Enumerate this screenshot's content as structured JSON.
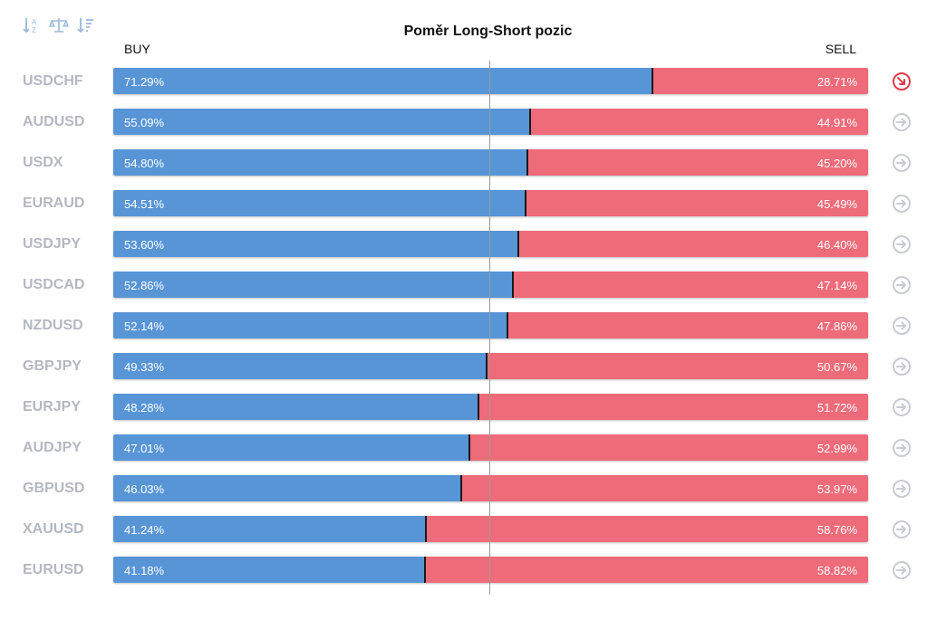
{
  "toolbar": {
    "icons": [
      "sort-alphabetical-icon",
      "balance-scale-icon",
      "sort-descending-icon"
    ]
  },
  "chart_data": {
    "type": "bar",
    "title": "Poměr Long-Short pozic",
    "left_label": "BUY",
    "right_label": "SELL",
    "categories": [
      "USDCHF",
      "AUDUSD",
      "USDX",
      "EURAUD",
      "USDJPY",
      "USDCAD",
      "NZDUSD",
      "GBPJPY",
      "EURJPY",
      "AUDJPY",
      "GBPUSD",
      "XAUUSD",
      "EURUSD"
    ],
    "series": [
      {
        "name": "BUY",
        "values": [
          71.29,
          55.09,
          54.8,
          54.51,
          53.6,
          52.86,
          52.14,
          49.33,
          48.28,
          47.01,
          46.03,
          41.24,
          41.18
        ]
      },
      {
        "name": "SELL",
        "values": [
          28.71,
          44.91,
          45.2,
          45.49,
          46.4,
          47.14,
          47.86,
          50.67,
          51.72,
          52.99,
          53.97,
          58.76,
          58.82
        ]
      }
    ],
    "buy_labels": [
      "71.29%",
      "55.09%",
      "54.80%",
      "54.51%",
      "53.60%",
      "52.86%",
      "52.14%",
      "49.33%",
      "48.28%",
      "47.01%",
      "46.03%",
      "41.24%",
      "41.18%"
    ],
    "sell_labels": [
      "28.71%",
      "44.91%",
      "45.20%",
      "45.49%",
      "46.40%",
      "47.14%",
      "47.86%",
      "50.67%",
      "51.72%",
      "52.99%",
      "53.97%",
      "58.76%",
      "58.82%"
    ],
    "ylim": [
      0,
      100
    ],
    "stacked": true,
    "colors": {
      "buy": "#5895d6",
      "sell": "#ee6b79"
    },
    "row_icons": [
      "arrow-down-right-icon",
      "arrow-right-icon",
      "arrow-right-icon",
      "arrow-right-icon",
      "arrow-right-icon",
      "arrow-right-icon",
      "arrow-right-icon",
      "arrow-right-icon",
      "arrow-right-icon",
      "arrow-right-icon",
      "arrow-right-icon",
      "arrow-right-icon",
      "arrow-right-icon"
    ],
    "row_icon_colors": [
      "#e23a4c",
      "#c8ccd2",
      "#c8ccd2",
      "#c8ccd2",
      "#c8ccd2",
      "#c8ccd2",
      "#c8ccd2",
      "#c8ccd2",
      "#c8ccd2",
      "#c8ccd2",
      "#c8ccd2",
      "#c8ccd2",
      "#c8ccd2"
    ]
  }
}
